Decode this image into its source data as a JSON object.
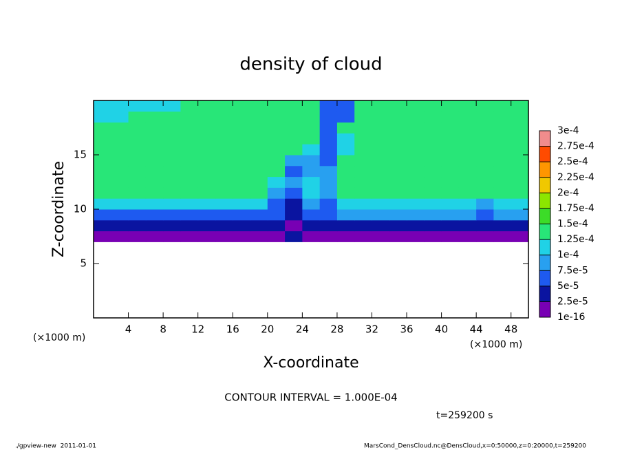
{
  "chart_data": {
    "type": "heatmap",
    "title": "density of cloud",
    "x_label": "X-coordinate",
    "y_label": "Z-coordinate",
    "x_unit_label": "(×1000 m)",
    "contour_note": "CONTOUR INTERVAL = 1.000E-04",
    "time_label": "t=259200 s",
    "footer_left": "./gpview-new  2011-01-01",
    "footer_right": "MarsCond_DensCloud.nc@DensCloud,x=0:50000,z=0:20000,t=259200",
    "xlim": [
      0,
      50
    ],
    "ylim": [
      0,
      20
    ],
    "xticks": [
      4,
      8,
      12,
      16,
      20,
      24,
      28,
      32,
      36,
      40,
      44,
      48
    ],
    "yticks": [
      5,
      10,
      15
    ],
    "x": [
      1,
      3,
      5,
      7,
      9,
      11,
      13,
      15,
      17,
      19,
      21,
      23,
      25,
      27,
      29,
      31,
      33,
      35,
      37,
      39,
      41,
      43,
      45,
      47,
      49
    ],
    "y": [
      7.5,
      8.5,
      9.5,
      10.5,
      11.5,
      12.5,
      13.5,
      14.5,
      15.5,
      16.5,
      17.5,
      18.5,
      19.5
    ],
    "z_values": [
      [
        1e-05,
        1e-05,
        1e-05,
        1e-05,
        1e-05,
        1e-05,
        1e-05,
        1e-05,
        1e-05,
        1e-05,
        1e-05,
        3e-05,
        1e-05,
        1e-05,
        1e-05,
        1e-05,
        1e-05,
        1e-05,
        1e-05,
        1e-05,
        1e-05,
        1e-05,
        1e-05,
        1e-05,
        1e-05
      ],
      [
        3.5e-05,
        3.5e-05,
        3.5e-05,
        3.5e-05,
        3.5e-05,
        3.5e-05,
        3.5e-05,
        3.5e-05,
        3.5e-05,
        3.5e-05,
        3.5e-05,
        2e-05,
        3.5e-05,
        3.5e-05,
        3.5e-05,
        3.5e-05,
        3.5e-05,
        3.5e-05,
        3.5e-05,
        3.5e-05,
        3.5e-05,
        3.5e-05,
        3.5e-05,
        3.5e-05,
        3.5e-05
      ],
      [
        7e-05,
        7e-05,
        7e-05,
        7e-05,
        7e-05,
        7e-05,
        7e-05,
        7e-05,
        7e-05,
        7e-05,
        5e-05,
        3e-05,
        6e-05,
        5e-05,
        9e-05,
        9e-05,
        9e-05,
        9e-05,
        9e-05,
        9e-05,
        9e-05,
        9e-05,
        6e-05,
        8e-05,
        8e-05
      ],
      [
        0.000115,
        0.000115,
        0.000115,
        0.000115,
        0.000115,
        0.000115,
        0.000115,
        0.000115,
        0.000115,
        0.000115,
        6e-05,
        4e-05,
        9e-05,
        7e-05,
        0.000105,
        0.000105,
        0.000105,
        0.000105,
        0.000105,
        0.000105,
        0.000105,
        0.0001,
        8e-05,
        0.00011,
        0.00011
      ],
      [
        0.00013,
        0.00013,
        0.00013,
        0.00013,
        0.00013,
        0.00013,
        0.00013,
        0.00013,
        0.00013,
        0.00013,
        9e-05,
        7e-05,
        0.00011,
        8e-05,
        0.00013,
        0.00013,
        0.00013,
        0.00013,
        0.00013,
        0.00013,
        0.00013,
        0.00013,
        0.00013,
        0.00013,
        0.00013
      ],
      [
        0.000135,
        0.000135,
        0.000135,
        0.000135,
        0.000135,
        0.000135,
        0.000135,
        0.000135,
        0.000135,
        0.000135,
        0.0001,
        8e-05,
        0.00011,
        9e-05,
        0.000135,
        0.000135,
        0.000135,
        0.000135,
        0.000135,
        0.000135,
        0.000135,
        0.000135,
        0.000135,
        0.000135,
        0.000135
      ],
      [
        0.000138,
        0.000138,
        0.000138,
        0.000138,
        0.000138,
        0.000138,
        0.000138,
        0.000138,
        0.000138,
        0.000138,
        0.000138,
        6e-05,
        9e-05,
        8e-05,
        0.000138,
        0.000138,
        0.000138,
        0.000138,
        0.000138,
        0.000138,
        0.000138,
        0.000138,
        0.000138,
        0.000138,
        0.000138
      ],
      [
        0.00014,
        0.00014,
        0.00014,
        0.00014,
        0.00014,
        0.00014,
        0.00014,
        0.00014,
        0.00014,
        0.00014,
        0.00014,
        9e-05,
        8e-05,
        7e-05,
        0.00014,
        0.00014,
        0.00014,
        0.00014,
        0.00014,
        0.00014,
        0.00014,
        0.00014,
        0.00014,
        0.00014,
        0.00014
      ],
      [
        0.000142,
        0.000142,
        0.000142,
        0.000142,
        0.000142,
        0.000142,
        0.000142,
        0.000142,
        0.000142,
        0.000142,
        0.000142,
        0.000142,
        0.0001,
        7e-05,
        0.00011,
        0.000142,
        0.000142,
        0.000142,
        0.000142,
        0.000142,
        0.000142,
        0.000142,
        0.000142,
        0.000142,
        0.000142
      ],
      [
        0.000142,
        0.000142,
        0.000142,
        0.000142,
        0.000142,
        0.000142,
        0.000142,
        0.000142,
        0.000142,
        0.000142,
        0.000142,
        0.000142,
        0.000142,
        6e-05,
        0.0001,
        0.000142,
        0.000142,
        0.000142,
        0.000142,
        0.000142,
        0.000142,
        0.000142,
        0.000142,
        0.000142,
        0.000142
      ],
      [
        0.00014,
        0.00014,
        0.00014,
        0.00014,
        0.00014,
        0.00014,
        0.00014,
        0.00014,
        0.00014,
        0.00014,
        0.00014,
        0.00014,
        0.00014,
        5e-05,
        0.00014,
        0.00014,
        0.00014,
        0.00014,
        0.00014,
        0.00014,
        0.00014,
        0.00014,
        0.00014,
        0.00014,
        0.00014
      ],
      [
        0.000115,
        0.000115,
        0.000135,
        0.000135,
        0.000135,
        0.000135,
        0.000135,
        0.000135,
        0.000135,
        0.000135,
        0.000135,
        0.000135,
        0.000135,
        5e-05,
        6e-05,
        0.000135,
        0.000135,
        0.000135,
        0.000135,
        0.000135,
        0.000135,
        0.000135,
        0.000135,
        0.000135,
        0.000135
      ],
      [
        0.0001,
        0.0001,
        0.0001,
        0.0001,
        0.0001,
        0.00013,
        0.00013,
        0.00013,
        0.00013,
        0.00013,
        0.00013,
        0.00013,
        0.00013,
        5e-05,
        5e-05,
        0.00013,
        0.00013,
        0.00013,
        0.00013,
        0.00013,
        0.00013,
        0.00013,
        0.00013,
        0.00013,
        0.00013
      ]
    ],
    "colorbar_ticks": [
      {
        "value": 1e-16,
        "label": "1e-16"
      },
      {
        "value": 2.5e-05,
        "label": "2.5e-5"
      },
      {
        "value": 5e-05,
        "label": "5e-5"
      },
      {
        "value": 7.5e-05,
        "label": "7.5e-5"
      },
      {
        "value": 0.0001,
        "label": "1e-4"
      },
      {
        "value": 0.000125,
        "label": "1.25e-4"
      },
      {
        "value": 0.00015,
        "label": "1.5e-4"
      },
      {
        "value": 0.000175,
        "label": "1.75e-4"
      },
      {
        "value": 0.0002,
        "label": "2e-4"
      },
      {
        "value": 0.000225,
        "label": "2.25e-4"
      },
      {
        "value": 0.00025,
        "label": "2.5e-4"
      },
      {
        "value": 0.000275,
        "label": "2.75e-4"
      },
      {
        "value": 0.0003,
        "label": "3e-4"
      }
    ],
    "colors": [
      "#7800b4",
      "#0a14a0",
      "#1e5af0",
      "#28a0f0",
      "#20d2e6",
      "#28e678",
      "#3cdc28",
      "#8ce600",
      "#f0c800",
      "#ff9600",
      "#ff4b00",
      "#f08c8c"
    ]
  }
}
